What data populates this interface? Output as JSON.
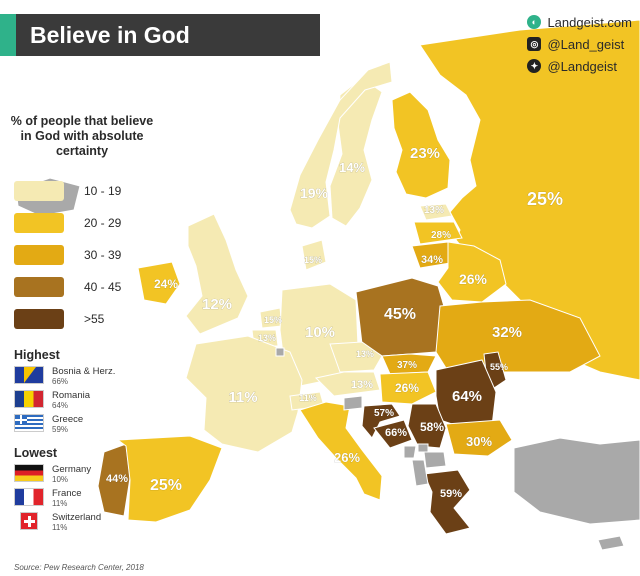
{
  "header": {
    "title": "Believe in God"
  },
  "social": [
    {
      "icon": "globe-icon",
      "handle": "Landgeist.com"
    },
    {
      "icon": "instagram-icon",
      "handle": "@Land_geist"
    },
    {
      "icon": "twitter-icon",
      "handle": "@Landgeist"
    }
  ],
  "legend": {
    "title": "% of people that believe in God with absolute certainty",
    "bins": [
      {
        "label": "10 - 19",
        "color": "#f5eab3"
      },
      {
        "label": "20 - 29",
        "color": "#f2c424"
      },
      {
        "label": "30 - 39",
        "color": "#e3aa14"
      },
      {
        "label": "40 - 45",
        "color": "#a87320"
      },
      {
        "label": ">55",
        "color": "#6b4016"
      }
    ]
  },
  "highest": {
    "heading": "Highest",
    "items": [
      {
        "name": "Bosnia & Herz.",
        "value": "66%"
      },
      {
        "name": "Romania",
        "value": "64%"
      },
      {
        "name": "Greece",
        "value": "59%"
      }
    ]
  },
  "lowest": {
    "heading": "Lowest",
    "items": [
      {
        "name": "Germany",
        "value": "10%"
      },
      {
        "name": "France",
        "value": "11%"
      },
      {
        "name": "Switzerland",
        "value": "11%"
      }
    ]
  },
  "source": "Source: Pew Research Center, 2018",
  "colors": {
    "sea": "#ffffff",
    "no_data": "#a9a9a9",
    "border": "#ffffff",
    "accent": "#2fb28a"
  },
  "countries": [
    {
      "name": "Russia",
      "label": "25%",
      "bin": 1
    },
    {
      "name": "Finland",
      "label": "23%",
      "bin": 1
    },
    {
      "name": "Sweden",
      "label": "14%",
      "bin": 0
    },
    {
      "name": "Norway",
      "label": "19%",
      "bin": 0
    },
    {
      "name": "Estonia",
      "label": "13%",
      "bin": 0
    },
    {
      "name": "Latvia",
      "label": "28%",
      "bin": 1
    },
    {
      "name": "Lithuania",
      "label": "34%",
      "bin": 2
    },
    {
      "name": "Belarus",
      "label": "26%",
      "bin": 1
    },
    {
      "name": "Denmark",
      "label": "15%",
      "bin": 0
    },
    {
      "name": "Ireland",
      "label": "24%",
      "bin": 1
    },
    {
      "name": "United Kingdom",
      "label": "12%",
      "bin": 0
    },
    {
      "name": "Netherlands",
      "label": "15%",
      "bin": 0
    },
    {
      "name": "Belgium",
      "label": "13%",
      "bin": 0
    },
    {
      "name": "Germany",
      "label": "10%",
      "bin": 0
    },
    {
      "name": "Poland",
      "label": "45%",
      "bin": 3
    },
    {
      "name": "Ukraine",
      "label": "32%",
      "bin": 2
    },
    {
      "name": "Czechia",
      "label": "13%",
      "bin": 0
    },
    {
      "name": "Slovakia",
      "label": "37%",
      "bin": 2
    },
    {
      "name": "Austria",
      "label": "13%",
      "bin": 0
    },
    {
      "name": "Hungary",
      "label": "26%",
      "bin": 1
    },
    {
      "name": "Moldova",
      "label": "55%",
      "bin": 4
    },
    {
      "name": "Romania",
      "label": "64%",
      "bin": 4
    },
    {
      "name": "France",
      "label": "11%",
      "bin": 0
    },
    {
      "name": "Switzerland",
      "label": "11%",
      "bin": 0
    },
    {
      "name": "Croatia",
      "label": "57%",
      "bin": 4
    },
    {
      "name": "Bosnia & Herz.",
      "label": "66%",
      "bin": 4
    },
    {
      "name": "Serbia",
      "label": "58%",
      "bin": 4
    },
    {
      "name": "Bulgaria",
      "label": "30%",
      "bin": 2
    },
    {
      "name": "Italy",
      "label": "26%",
      "bin": 1
    },
    {
      "name": "Portugal",
      "label": "44%",
      "bin": 3
    },
    {
      "name": "Spain",
      "label": "25%",
      "bin": 1
    },
    {
      "name": "Greece",
      "label": "59%",
      "bin": 4
    },
    {
      "name": "Iceland",
      "label": "",
      "bin": null
    },
    {
      "name": "Turkey",
      "label": "",
      "bin": null
    },
    {
      "name": "Slovenia",
      "label": "",
      "bin": null
    },
    {
      "name": "Montenegro",
      "label": "",
      "bin": null
    },
    {
      "name": "Albania",
      "label": "",
      "bin": null
    },
    {
      "name": "North Macedonia",
      "label": "",
      "bin": null
    },
    {
      "name": "Kosovo",
      "label": "",
      "bin": null
    },
    {
      "name": "Cyprus",
      "label": "",
      "bin": null
    },
    {
      "name": "Luxembourg",
      "label": "",
      "bin": null
    }
  ]
}
